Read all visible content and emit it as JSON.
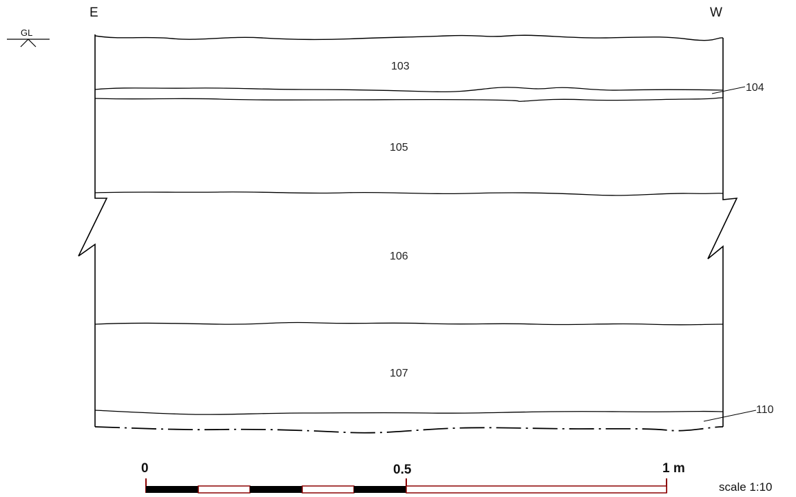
{
  "orientation": {
    "left": "E",
    "right": "W"
  },
  "ground_level": {
    "label": "GL"
  },
  "contexts": [
    {
      "id": "103"
    },
    {
      "id": "104"
    },
    {
      "id": "105"
    },
    {
      "id": "106"
    },
    {
      "id": "107"
    },
    {
      "id": "110"
    }
  ],
  "scale_bar": {
    "labels": {
      "start": "0",
      "middle": "0.5",
      "end": "1 m"
    },
    "colors": {
      "filled": "#000000",
      "line": "#8b0000",
      "empty": "#ffffff"
    }
  },
  "scale_note": "scale 1:10"
}
